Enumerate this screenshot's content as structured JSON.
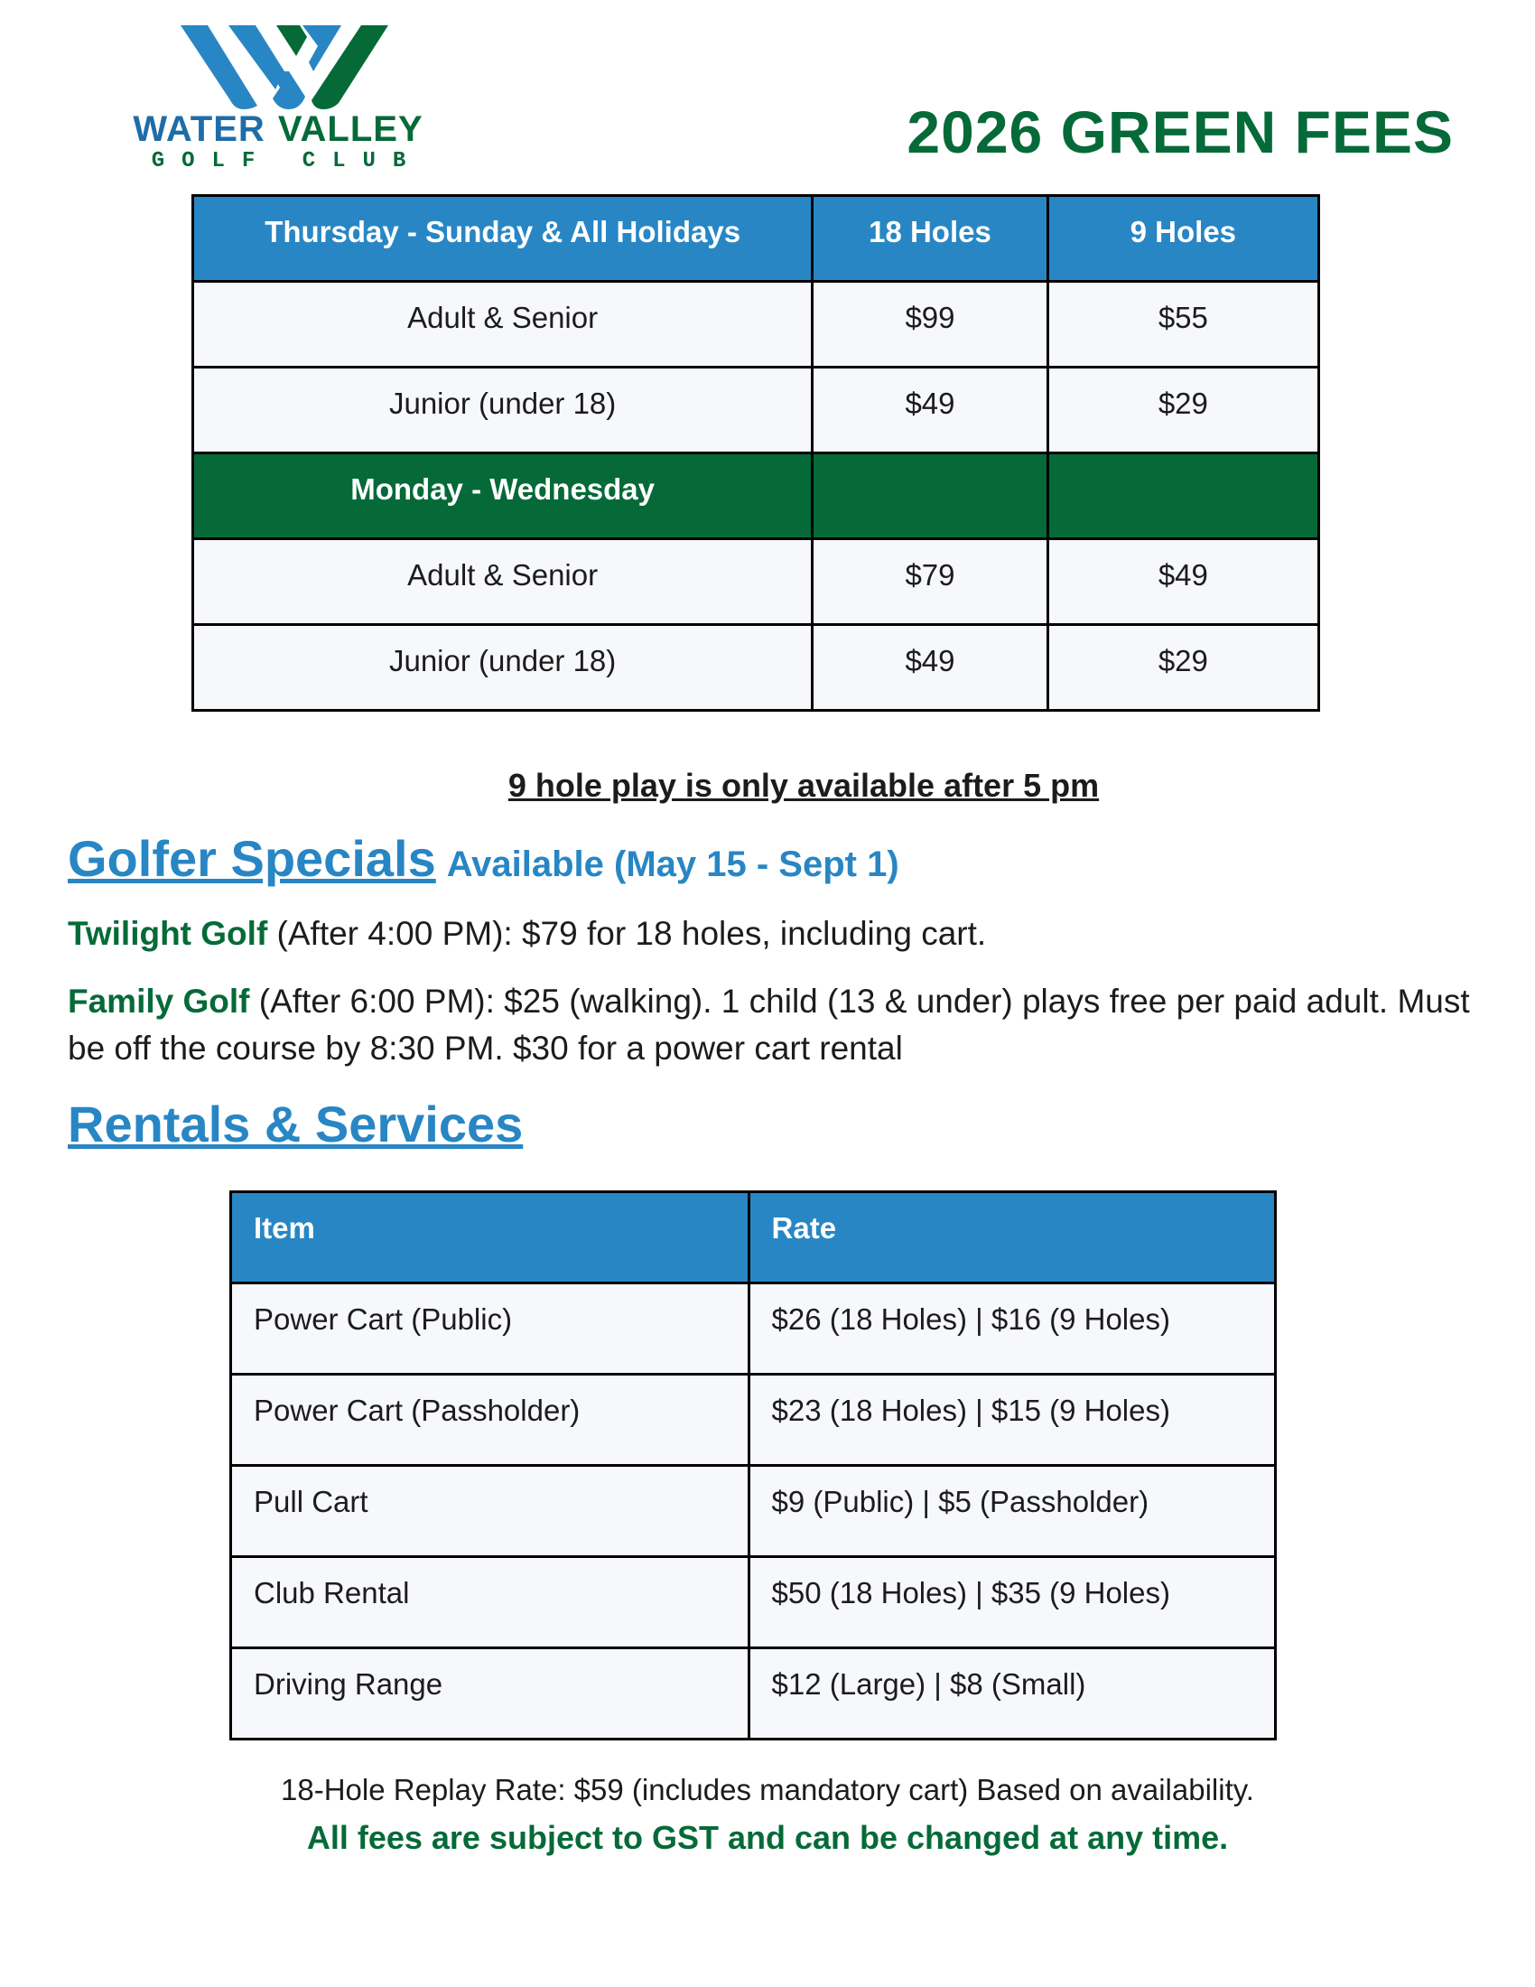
{
  "logo": {
    "line1_a": "WATER",
    "line1_b": "VALLEY",
    "line2": "GOLF CLUB"
  },
  "colors": {
    "blue": "#2886c4",
    "green": "#056a38",
    "row_bg": "#f7f8fc"
  },
  "title": "2026 GREEN FEES",
  "fees_table": {
    "headers": [
      "Thursday - Sunday & All Holidays",
      "18 Holes",
      "9 Holes"
    ],
    "rows": [
      [
        "Adult & Senior",
        "$99",
        "$55"
      ],
      [
        "Junior (under 18)",
        "$49",
        "$29"
      ],
      [
        "Monday - Wednesday",
        "",
        ""
      ],
      [
        "Adult & Senior",
        "$79",
        "$49"
      ],
      [
        "Junior (under 18)",
        "$49",
        "$29"
      ]
    ]
  },
  "note": "9 hole play is only available after 5 pm",
  "specials": {
    "heading": "Golfer Specials",
    "subheading": "Available (May 15 - Sept 1)",
    "twilight_label": "Twilight Golf",
    "twilight_text": " (After 4:00 PM): $79 for 18 holes, including cart.",
    "family_label": "Family Golf",
    "family_text": " (After 6:00 PM): $25 (walking). 1 child (13 & under) plays free per paid adult. Must be off the course by 8:30 PM. $30 for a power cart rental"
  },
  "rentals": {
    "heading": "Rentals & Services",
    "headers": [
      "Item",
      "Rate"
    ],
    "rows": [
      [
        "Power Cart (Public)",
        "$26 (18 Holes) | $16 (9 Holes)"
      ],
      [
        "Power Cart (Passholder)",
        "$23 (18 Holes) | $15 (9 Holes)"
      ],
      [
        "Pull Cart",
        "$9 (Public) | $5 (Passholder)"
      ],
      [
        "Club Rental",
        "$50 (18 Holes) | $35 (9 Holes)"
      ],
      [
        "Driving Range",
        "$12 (Large) | $8 (Small)"
      ]
    ]
  },
  "footer": {
    "replay": "18-Hole Replay Rate: $59 (includes mandatory cart) Based on availability.",
    "gst": "All fees are subject to GST and can be changed at any time."
  }
}
